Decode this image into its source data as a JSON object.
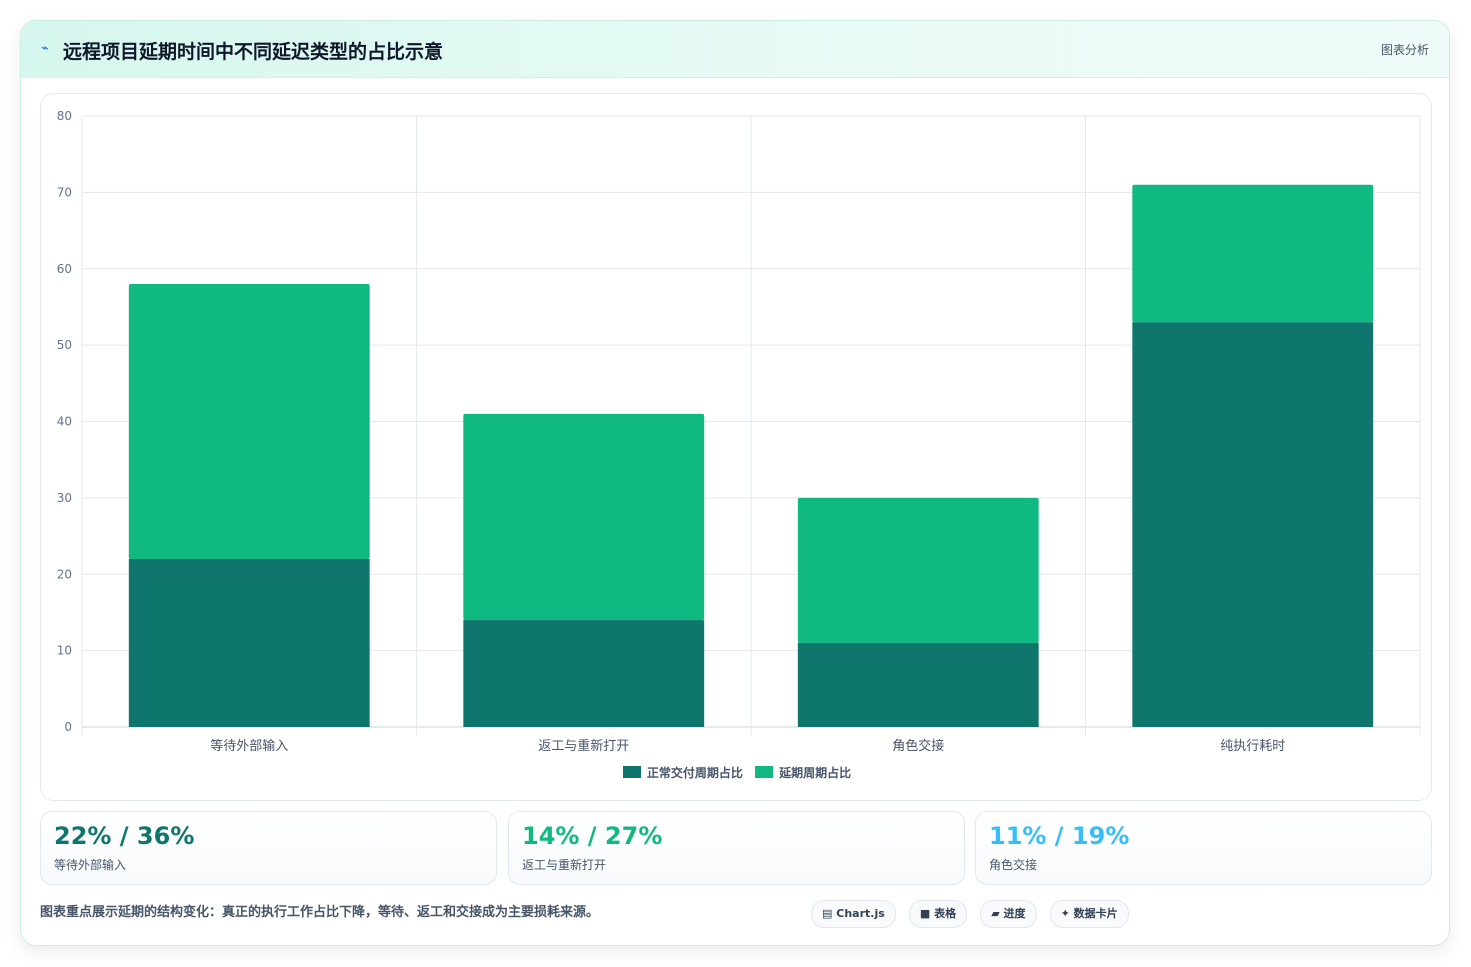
{
  "header": {
    "icon": "sparkle-icon",
    "title": "远程项目延期时间中不同延迟类型的占比示意",
    "tag": "图表分析"
  },
  "colors": {
    "series1": "#0f766e",
    "series2": "#10b981",
    "card1": "#0f766e",
    "card2": "#10b981",
    "card3": "#38bdf8"
  },
  "chart_data": {
    "type": "bar",
    "stacked": true,
    "categories": [
      "等待外部输入",
      "返工与重新打开",
      "角色交接",
      "纯执行耗时"
    ],
    "series": [
      {
        "name": "正常交付周期占比",
        "values": [
          22,
          14,
          11,
          53
        ]
      },
      {
        "name": "延期周期占比",
        "values": [
          36,
          27,
          19,
          18
        ]
      }
    ],
    "ylim": [
      0,
      80
    ],
    "yticks": [
      0,
      10,
      20,
      30,
      40,
      50,
      60,
      70,
      80
    ],
    "grid": true,
    "legend": "bottom"
  },
  "cards": [
    {
      "value": "22% / 36%",
      "label": "等待外部输入"
    },
    {
      "value": "14% / 27%",
      "label": "返工与重新打开"
    },
    {
      "value": "11% / 19%",
      "label": "角色交接"
    }
  ],
  "footer": {
    "text": "图表重点展示延期的结构变化：真正的执行工作占比下降，等待、返工和交接成为主要损耗来源。",
    "chips": [
      {
        "icon": "chart-icon",
        "glyph": "▤",
        "label": "Chart.js"
      },
      {
        "icon": "table-icon",
        "glyph": "■",
        "label": "表格"
      },
      {
        "icon": "progress-icon",
        "glyph": "▰",
        "label": "进度"
      },
      {
        "icon": "card-icon",
        "glyph": "✦",
        "label": "数据卡片"
      }
    ]
  }
}
